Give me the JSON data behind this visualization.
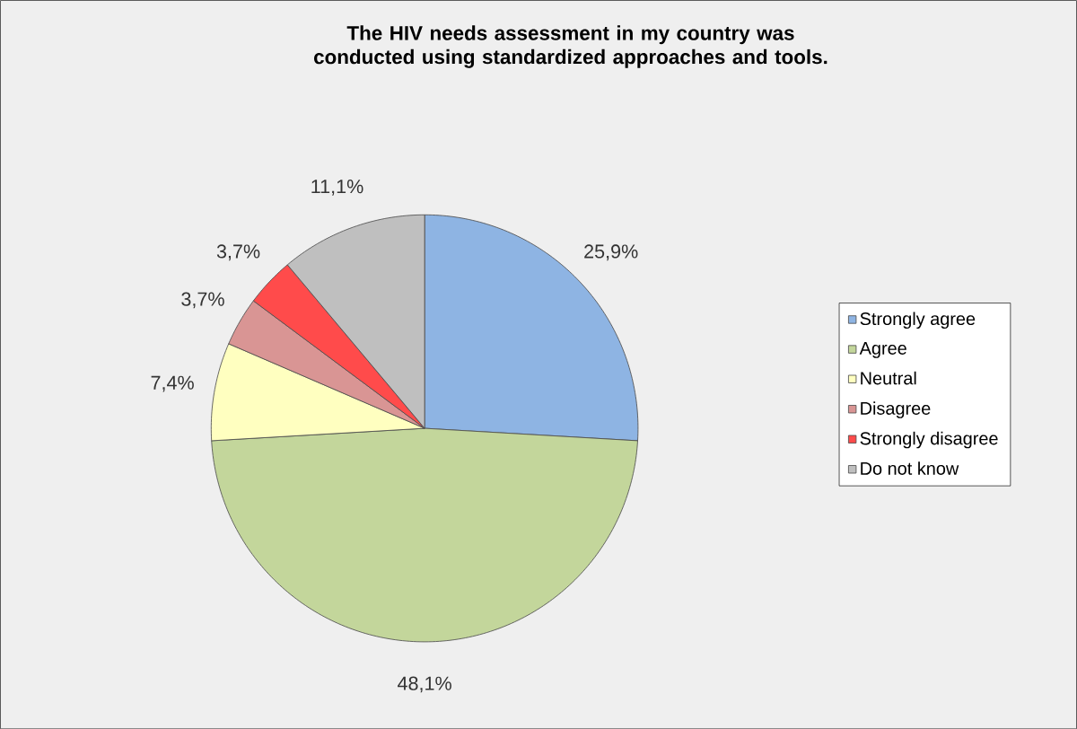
{
  "chart_data": {
    "type": "pie",
    "title": "The HIV needs assessment in my country was conducted using standardized approaches and tools.",
    "categories": [
      "Strongly agree",
      "Agree",
      "Neutral",
      "Disagree",
      "Strongly disagree",
      "Do not know"
    ],
    "values": [
      25.9,
      48.1,
      7.4,
      3.7,
      3.7,
      11.1
    ],
    "value_labels": [
      "25,9%",
      "48,1%",
      "7,4%",
      "3,7%",
      "3,7%",
      "11,1%"
    ],
    "colors": [
      "#8eb4e3",
      "#c3d69b",
      "#ffffc0",
      "#d99594",
      "#ff4b4b",
      "#bfbfbf"
    ],
    "legend": "right"
  }
}
